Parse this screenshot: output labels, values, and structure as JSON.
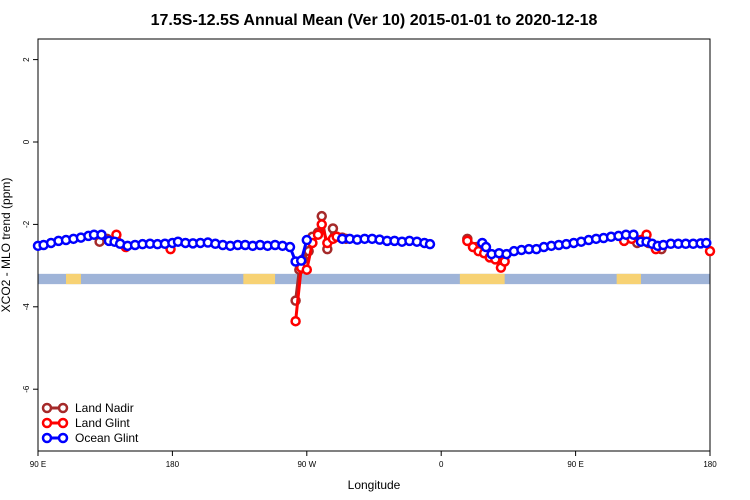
{
  "chart_data": {
    "type": "line",
    "title": "17.5S-12.5S Annual Mean (Ver 10)   2015-01-01 to 2020-12-18",
    "xlabel": "Longitude",
    "ylabel": "XCO2 - MLO trend (ppm)",
    "xlim": [
      -180,
      180
    ],
    "ylim": [
      -7.5,
      2.5
    ],
    "x_ticks": [
      {
        "value": -180,
        "label": "90 E"
      },
      {
        "value": -108,
        "label": "180"
      },
      {
        "value": -36,
        "label": "90 W"
      },
      {
        "value": 36,
        "label": "0"
      },
      {
        "value": 108,
        "label": "90 E"
      },
      {
        "value": 180,
        "label": "180"
      }
    ],
    "y_ticks": [
      {
        "value": -6,
        "label": "-6"
      },
      {
        "value": -4,
        "label": "-4"
      },
      {
        "value": -2,
        "label": "-2"
      },
      {
        "value": 0,
        "label": "0"
      },
      {
        "value": 2,
        "label": "2"
      }
    ],
    "grid": false,
    "legend_position": "bottom-left",
    "land_mask_band": {
      "y_range": [
        -3.45,
        -3.2
      ],
      "ocean_color": "#9fb4d8",
      "land_color": "#f7d274",
      "land_segments": [
        [
          -165,
          -157
        ],
        [
          -70,
          -53
        ],
        [
          46,
          70
        ],
        [
          130,
          143
        ]
      ]
    },
    "series": [
      {
        "name": "Land Nadir",
        "color": "#a52a2a",
        "points": [
          [
            -147,
            -2.42
          ],
          [
            -143,
            -2.35
          ],
          [
            -42,
            -3.85
          ],
          [
            -40,
            -3.1
          ],
          [
            -38,
            -2.85
          ],
          [
            -35,
            -2.65
          ],
          [
            -33,
            -2.3
          ],
          [
            -30,
            -2.2
          ],
          [
            -28,
            -1.8
          ],
          [
            -25,
            -2.6
          ],
          [
            -22,
            -2.1
          ],
          [
            -20,
            -2.3
          ],
          [
            -17,
            -2.32
          ],
          [
            -15,
            -2.35
          ],
          [
            50,
            -2.35
          ],
          [
            55,
            -2.55
          ],
          [
            58,
            -2.65
          ],
          [
            62,
            -2.75
          ],
          [
            66,
            -2.82
          ],
          [
            141,
            -2.45
          ],
          [
            144,
            -2.38
          ],
          [
            147,
            -2.45
          ],
          [
            151,
            -2.55
          ],
          [
            154,
            -2.6
          ]
        ]
      },
      {
        "name": "Land Glint",
        "color": "#ff0000",
        "points": [
          [
            -138,
            -2.25
          ],
          [
            -133,
            -2.55
          ],
          [
            -109,
            -2.6
          ],
          [
            -42,
            -4.35
          ],
          [
            -39,
            -3.05
          ],
          [
            -36,
            -3.1
          ],
          [
            -33,
            -2.45
          ],
          [
            -30,
            -2.25
          ],
          [
            -28,
            -2.0
          ],
          [
            -25,
            -2.45
          ],
          [
            -22,
            -2.35
          ],
          [
            -20,
            -2.3
          ],
          [
            50,
            -2.4
          ],
          [
            53,
            -2.55
          ],
          [
            56,
            -2.65
          ],
          [
            59,
            -2.7
          ],
          [
            62,
            -2.8
          ],
          [
            65,
            -2.85
          ],
          [
            68,
            -3.05
          ],
          [
            70,
            -2.9
          ],
          [
            134,
            -2.4
          ],
          [
            138,
            -2.35
          ],
          [
            146,
            -2.25
          ],
          [
            151,
            -2.6
          ],
          [
            180,
            -2.65
          ]
        ]
      },
      {
        "name": "Ocean Glint",
        "color": "#0000ff",
        "points": [
          [
            -180,
            -2.52
          ],
          [
            -177,
            -2.5
          ],
          [
            -173,
            -2.45
          ],
          [
            -169,
            -2.4
          ],
          [
            -165,
            -2.38
          ],
          [
            -161,
            -2.35
          ],
          [
            -157,
            -2.32
          ],
          [
            -153,
            -2.28
          ],
          [
            -150,
            -2.25
          ],
          [
            -146,
            -2.25
          ],
          [
            -142,
            -2.4
          ],
          [
            -139,
            -2.42
          ],
          [
            -136,
            -2.47
          ],
          [
            -132,
            -2.52
          ],
          [
            -128,
            -2.5
          ],
          [
            -124,
            -2.48
          ],
          [
            -120,
            -2.47
          ],
          [
            -116,
            -2.48
          ],
          [
            -112,
            -2.47
          ],
          [
            -108,
            -2.45
          ],
          [
            -105,
            -2.42
          ],
          [
            -101,
            -2.45
          ],
          [
            -97,
            -2.46
          ],
          [
            -93,
            -2.45
          ],
          [
            -89,
            -2.44
          ],
          [
            -85,
            -2.47
          ],
          [
            -81,
            -2.5
          ],
          [
            -77,
            -2.52
          ],
          [
            -73,
            -2.5
          ],
          [
            -69,
            -2.5
          ],
          [
            -65,
            -2.52
          ],
          [
            -61,
            -2.5
          ],
          [
            -57,
            -2.52
          ],
          [
            -53,
            -2.5
          ],
          [
            -49,
            -2.52
          ],
          [
            -45,
            -2.55
          ],
          [
            -42,
            -2.9
          ],
          [
            -39,
            -2.88
          ],
          [
            -36,
            -2.38
          ],
          [
            -17,
            -2.35
          ],
          [
            -13,
            -2.35
          ],
          [
            -9,
            -2.37
          ],
          [
            -5,
            -2.35
          ],
          [
            -1,
            -2.35
          ],
          [
            3,
            -2.37
          ],
          [
            7,
            -2.4
          ],
          [
            11,
            -2.4
          ],
          [
            15,
            -2.42
          ],
          [
            19,
            -2.4
          ],
          [
            23,
            -2.42
          ],
          [
            27,
            -2.45
          ],
          [
            30,
            -2.48
          ],
          [
            58,
            -2.45
          ],
          [
            60,
            -2.55
          ],
          [
            63,
            -2.72
          ],
          [
            67,
            -2.7
          ],
          [
            71,
            -2.72
          ],
          [
            75,
            -2.65
          ],
          [
            79,
            -2.62
          ],
          [
            83,
            -2.6
          ],
          [
            87,
            -2.6
          ],
          [
            91,
            -2.55
          ],
          [
            95,
            -2.52
          ],
          [
            99,
            -2.5
          ],
          [
            103,
            -2.48
          ],
          [
            107,
            -2.45
          ],
          [
            111,
            -2.42
          ],
          [
            115,
            -2.38
          ],
          [
            119,
            -2.35
          ],
          [
            123,
            -2.33
          ],
          [
            127,
            -2.3
          ],
          [
            131,
            -2.28
          ],
          [
            135,
            -2.25
          ],
          [
            139,
            -2.25
          ],
          [
            143,
            -2.42
          ],
          [
            146,
            -2.42
          ],
          [
            149,
            -2.47
          ],
          [
            152,
            -2.52
          ],
          [
            155,
            -2.5
          ],
          [
            159,
            -2.47
          ],
          [
            163,
            -2.47
          ],
          [
            167,
            -2.47
          ],
          [
            171,
            -2.47
          ],
          [
            175,
            -2.46
          ],
          [
            178,
            -2.45
          ]
        ]
      }
    ]
  }
}
